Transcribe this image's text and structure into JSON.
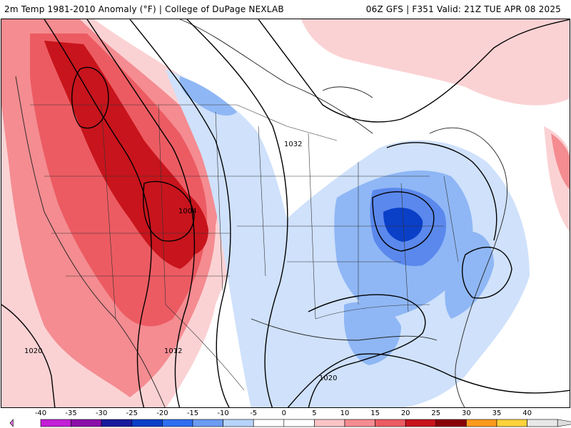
{
  "header": {
    "title_left": "2m Temp 1981-2010 Anomaly (°F) | College of DuPage NEXLAB",
    "title_right": "06Z GFS | F351 Valid: 21Z TUE APR 08 2025"
  },
  "map": {
    "isobar_labels": [
      "1032",
      "1004",
      "1020",
      "1012",
      "1020"
    ]
  },
  "colorbar": {
    "tick_labels": [
      "-40",
      "-35",
      "-30",
      "-25",
      "-20",
      "-15",
      "-10",
      "-5",
      "0",
      "5",
      "10",
      "15",
      "20",
      "25",
      "30",
      "35",
      "40"
    ],
    "colors": [
      "#e06be0",
      "#c21fd6",
      "#8a0fa8",
      "#1a1a9e",
      "#0a3fc8",
      "#2e6ef0",
      "#6b9cf2",
      "#b8d3fb",
      "#ffffff",
      "#ffffff",
      "#fbc4c6",
      "#f48c91",
      "#ec5b62",
      "#c8141c",
      "#8a0008",
      "#ff9a1c",
      "#ffd23a",
      "#e8e8e8"
    ]
  }
}
